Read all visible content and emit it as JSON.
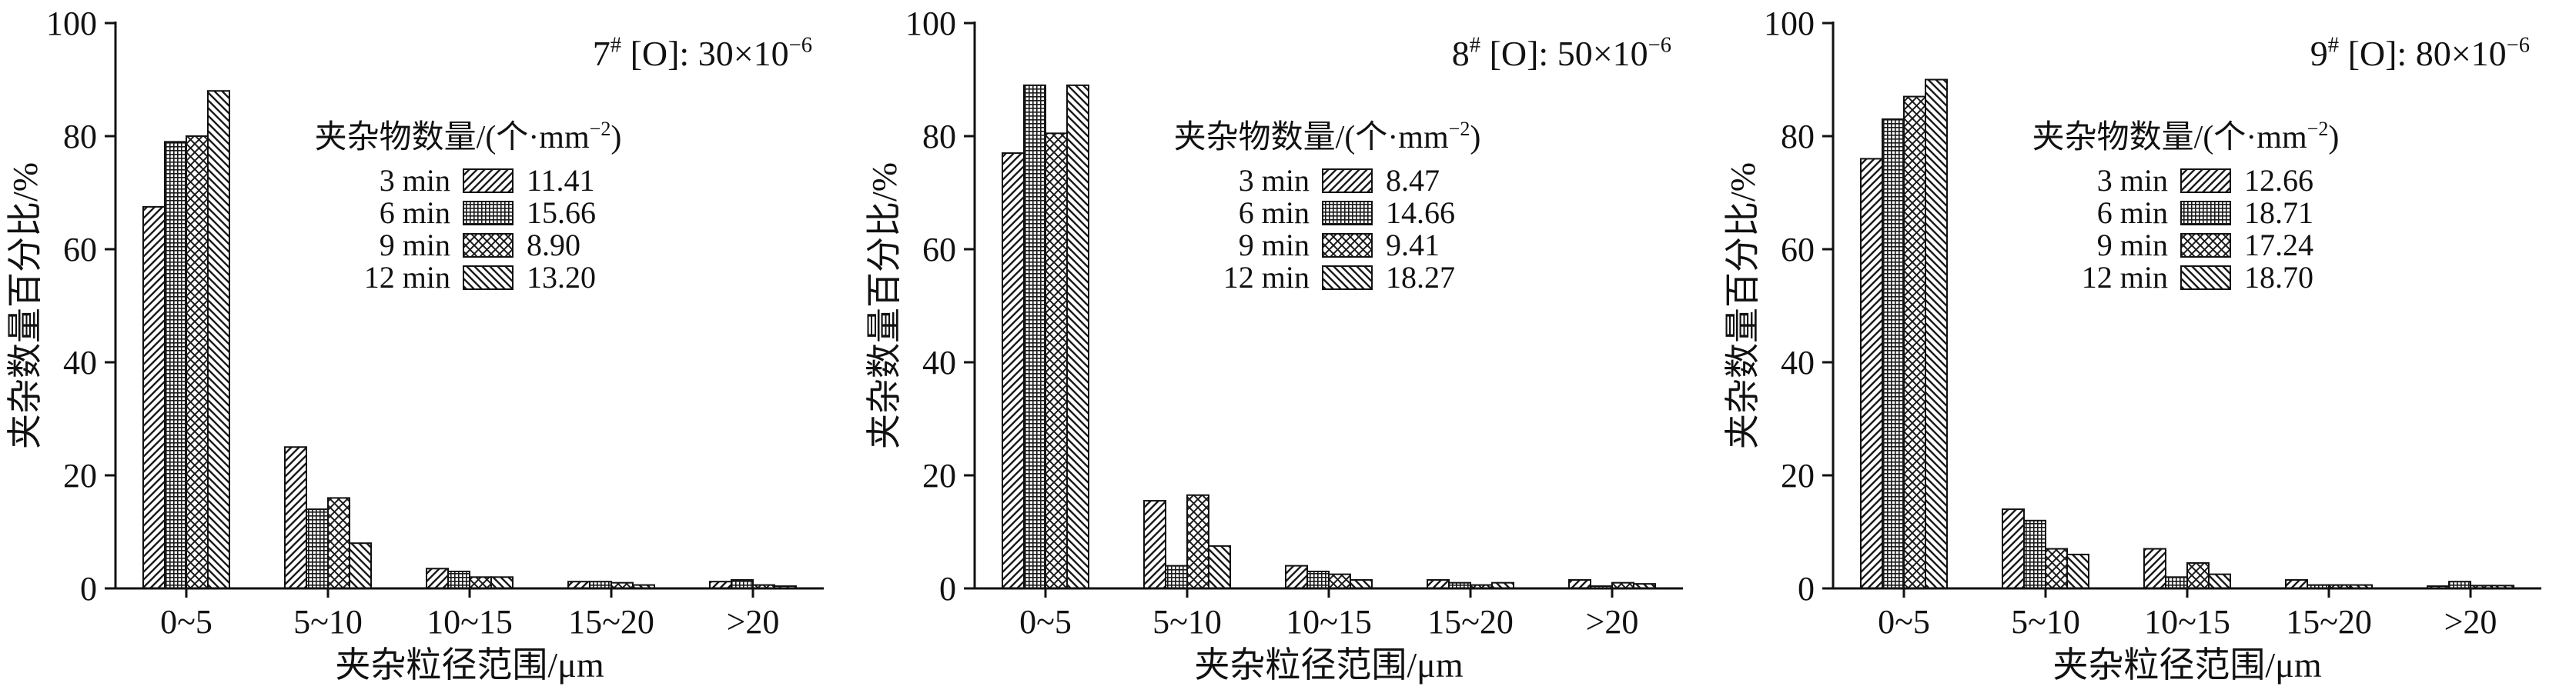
{
  "figure": {
    "background": "#ffffff",
    "axis_color": "#111111",
    "ylabel": "夹杂数量百分比/%",
    "xlabel": "夹杂粒径范围/μm",
    "yticks": [
      0,
      20,
      40,
      60,
      80,
      100
    ],
    "ylim": [
      0,
      100
    ],
    "categories": [
      "0~5",
      "5~10",
      "10~15",
      "15~20",
      ">20"
    ],
    "legend_title": "夹杂物数量/(个·mm⁻²)",
    "legend_title_parts": [
      {
        "t": "夹杂物数量/(个·mm"
      },
      {
        "t": "−2",
        "sup": true
      },
      {
        "t": ")"
      }
    ],
    "series_patterns": [
      "diagonal-hatch",
      "dense-grid-hatch",
      "diamond-crosshatch",
      "back-diagonal-hatch"
    ]
  },
  "chart_data": [
    {
      "type": "bar",
      "title": "7# [O]: 30×10⁻⁶",
      "title_parts": [
        {
          "t": "7"
        },
        {
          "t": "#",
          "sup": true
        },
        {
          "t": " [O]: 30×10"
        },
        {
          "t": "−6",
          "sup": true
        }
      ],
      "categories": [
        "0~5",
        "5~10",
        "10~15",
        "15~20",
        ">20"
      ],
      "xlabel": "夹杂粒径范围/μm",
      "ylabel": "夹杂数量百分比/%",
      "ylim": [
        0,
        100
      ],
      "series": [
        {
          "name": "3 min",
          "pattern": "diagonal-hatch",
          "legend_value": "11.41",
          "values": [
            67.5,
            25,
            3.5,
            1.2,
            1.2
          ]
        },
        {
          "name": "6 min",
          "pattern": "dense-grid-hatch",
          "legend_value": "15.66",
          "values": [
            79,
            14,
            3,
            1.2,
            1.5
          ]
        },
        {
          "name": "9 min",
          "pattern": "diamond-crosshatch",
          "legend_value": "8.90",
          "values": [
            80,
            16,
            2,
            1,
            0.6
          ]
        },
        {
          "name": "12 min",
          "pattern": "back-diagonal-hatch",
          "legend_value": "13.20",
          "values": [
            88,
            8,
            2,
            0.6,
            0.4
          ]
        }
      ]
    },
    {
      "type": "bar",
      "title": "8# [O]: 50×10⁻⁶",
      "title_parts": [
        {
          "t": "8"
        },
        {
          "t": "#",
          "sup": true
        },
        {
          "t": " [O]: 50×10"
        },
        {
          "t": "−6",
          "sup": true
        }
      ],
      "categories": [
        "0~5",
        "5~10",
        "10~15",
        "15~20",
        ">20"
      ],
      "xlabel": "夹杂粒径范围/μm",
      "ylabel": "夹杂数量百分比/%",
      "ylim": [
        0,
        100
      ],
      "series": [
        {
          "name": "3 min",
          "pattern": "diagonal-hatch",
          "legend_value": "8.47",
          "values": [
            77,
            15.5,
            4,
            1.5,
            1.5
          ]
        },
        {
          "name": "6 min",
          "pattern": "dense-grid-hatch",
          "legend_value": "14.66",
          "values": [
            89,
            4,
            3,
            1,
            0.4
          ]
        },
        {
          "name": "9 min",
          "pattern": "diamond-crosshatch",
          "legend_value": "9.41",
          "values": [
            80.5,
            16.5,
            2.5,
            0.6,
            1
          ]
        },
        {
          "name": "12 min",
          "pattern": "back-diagonal-hatch",
          "legend_value": "18.27",
          "values": [
            89,
            7.5,
            1.5,
            1,
            0.8
          ]
        }
      ]
    },
    {
      "type": "bar",
      "title": "9# [O]: 80×10⁻⁶",
      "title_parts": [
        {
          "t": "9"
        },
        {
          "t": "#",
          "sup": true
        },
        {
          "t": " [O]: 80×10"
        },
        {
          "t": "−6",
          "sup": true
        }
      ],
      "categories": [
        "0~5",
        "5~10",
        "10~15",
        "15~20",
        ">20"
      ],
      "xlabel": "夹杂粒径范围/μm",
      "ylabel": "夹杂数量百分比/%",
      "ylim": [
        0,
        100
      ],
      "series": [
        {
          "name": "3 min",
          "pattern": "diagonal-hatch",
          "legend_value": "12.66",
          "values": [
            76,
            14,
            7,
            1.5,
            0.4
          ]
        },
        {
          "name": "6 min",
          "pattern": "dense-grid-hatch",
          "legend_value": "18.71",
          "values": [
            83,
            12,
            2,
            0.6,
            1.2
          ]
        },
        {
          "name": "9 min",
          "pattern": "diamond-crosshatch",
          "legend_value": "17.24",
          "values": [
            87,
            7,
            4.5,
            0.6,
            0.5
          ]
        },
        {
          "name": "12 min",
          "pattern": "back-diagonal-hatch",
          "legend_value": "18.70",
          "values": [
            90,
            6,
            2.5,
            0.6,
            0.5
          ]
        }
      ]
    }
  ]
}
